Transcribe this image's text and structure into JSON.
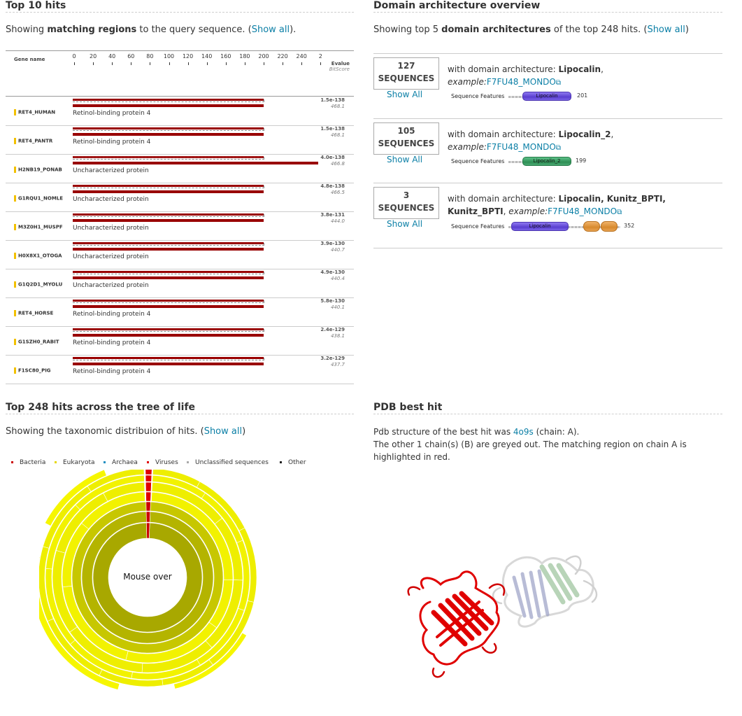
{
  "top_hits": {
    "title": "Top 10 hits",
    "subtitle_pre": "Showing ",
    "subtitle_bold": "matching regions",
    "subtitle_post": " to the query sequence. (",
    "show_all": "Show all",
    "subtitle_end": ").",
    "gene_header": "Gene name",
    "evalue_header": "Evalue",
    "bitscore_header": "BitScore",
    "scale_ticks": [
      "0",
      "20",
      "40",
      "60",
      "80",
      "100",
      "120",
      "140",
      "160",
      "180",
      "200",
      "220",
      "240",
      "2"
    ],
    "hits": [
      {
        "gene": "RET4_HUMAN",
        "protein": "Retinol-binding protein 4",
        "evalue": "1.5e-138",
        "bitscore": "468.1"
      },
      {
        "gene": "RET4_PANTR",
        "protein": "Retinol-binding protein 4",
        "evalue": "1.5e-138",
        "bitscore": "468.1"
      },
      {
        "gene": "H2NB19_PONAB",
        "protein": "Uncharacterized protein",
        "evalue": "4.0e-138",
        "bitscore": "466.8"
      },
      {
        "gene": "G1RQU1_NOMLE",
        "protein": "Uncharacterized protein",
        "evalue": "4.8e-138",
        "bitscore": "466.5"
      },
      {
        "gene": "M3Z0H1_MUSPF",
        "protein": "Uncharacterized protein",
        "evalue": "3.8e-131",
        "bitscore": "444.0"
      },
      {
        "gene": "H0X8X1_OTOGA",
        "protein": "Uncharacterized protein",
        "evalue": "3.9e-130",
        "bitscore": "440.7"
      },
      {
        "gene": "G1Q2D1_MYOLU",
        "protein": "Uncharacterized protein",
        "evalue": "4.9e-130",
        "bitscore": "440.4"
      },
      {
        "gene": "RET4_HORSE",
        "protein": "Retinol-binding protein 4",
        "evalue": "5.8e-130",
        "bitscore": "440.1"
      },
      {
        "gene": "G1SZH0_RABIT",
        "protein": "Retinol-binding protein 4",
        "evalue": "2.4e-129",
        "bitscore": "438.1"
      },
      {
        "gene": "F1SC80_PIG",
        "protein": "Retinol-binding protein 4",
        "evalue": "3.2e-129",
        "bitscore": "437.7"
      }
    ]
  },
  "domain_arch": {
    "title": "Domain architecture overview",
    "subtitle_pre": "Showing top 5 ",
    "subtitle_bold": "domain architectures",
    "subtitle_post": " of the top 248 hits. (",
    "show_all": "Show all",
    "subtitle_end": ")",
    "sequences_label": "SEQUENCES",
    "show_all_btn": "Show All",
    "features_label": "Sequence Features",
    "with_text": "with domain architecture: ",
    "example_text": "example:",
    "rows": [
      {
        "count": "127",
        "arch": "Lipocalin",
        "example": "F7FU48_MONDO",
        "domain_label": "Lipocalin",
        "length": "201"
      },
      {
        "count": "105",
        "arch": "Lipocalin_2",
        "example": "F7FU48_MONDO",
        "domain_label": "Lipocalin_2",
        "length": "199"
      },
      {
        "count": "3",
        "arch": "Lipocalin, Kunitz_BPTI, Kunitz_BPTI",
        "example": "F7FU48_MONDO",
        "domain_label": "Lipocalin",
        "length": "352"
      }
    ]
  },
  "tree": {
    "title": "Top 248 hits across the tree of life",
    "subtitle_pre": "Showing the taxonomic distribuion of hits. (",
    "show_all": "Show all",
    "subtitle_end": ")",
    "center_text": "Mouse over",
    "legend": [
      {
        "label": "Bacteria",
        "color": "#cc0000"
      },
      {
        "label": "Eukaryota",
        "color": "#e6d800"
      },
      {
        "label": "Archaea",
        "color": "#1f8fc2"
      },
      {
        "label": "Viruses",
        "color": "#e00000"
      },
      {
        "label": "Unclassified sequences",
        "color": "#aaaaaa"
      },
      {
        "label": "Other",
        "color": "#222222"
      }
    ]
  },
  "pdb": {
    "title": "PDB best hit",
    "line1_pre": "Pdb structure of the best hit was ",
    "pdb_id": "4o9s",
    "line1_post": " (chain: A).",
    "line2": "The other 1 chain(s) (B) are greyed out. The matching region on chain A is highlighted in red."
  },
  "colors": {
    "link": "#0b7fa6",
    "hit_bar": "#990000",
    "gene_marker": "#f2c000"
  }
}
